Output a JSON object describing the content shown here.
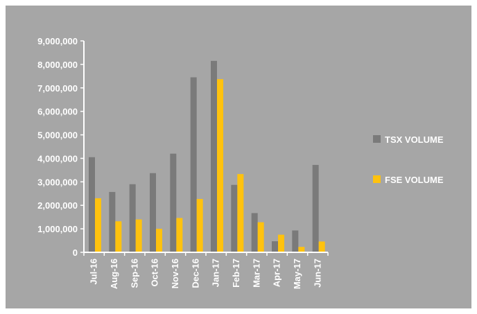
{
  "chart_data": {
    "type": "bar",
    "categories": [
      "Jul-16",
      "Aug-16",
      "Sep-16",
      "Oct-16",
      "Nov-16",
      "Dec-16",
      "Jan-17",
      "Feb-17",
      "Mar-17",
      "Apr-17",
      "May-17",
      "Jun-17"
    ],
    "series": [
      {
        "name": "TSX VOLUME",
        "color": "#7a7a7a",
        "values": [
          4050000,
          2570000,
          2900000,
          3370000,
          4200000,
          7450000,
          8150000,
          2870000,
          1670000,
          470000,
          930000,
          3720000
        ]
      },
      {
        "name": "FSE VOLUME",
        "color": "#ffc20e",
        "values": [
          2300000,
          1320000,
          1400000,
          1000000,
          1460000,
          2270000,
          7370000,
          3330000,
          1280000,
          750000,
          230000,
          460000
        ]
      }
    ],
    "ylim": [
      0,
      9000000
    ],
    "y_ticks": [
      "0",
      "1,000,000",
      "2,000,000",
      "3,000,000",
      "4,000,000",
      "5,000,000",
      "6,000,000",
      "7,000,000",
      "8,000,000",
      "9,000,000"
    ],
    "legend_position": "right",
    "background_color": "#a6a6a6",
    "axis_color": "#ffffff",
    "text_color": "#ffffff",
    "grid": false
  }
}
